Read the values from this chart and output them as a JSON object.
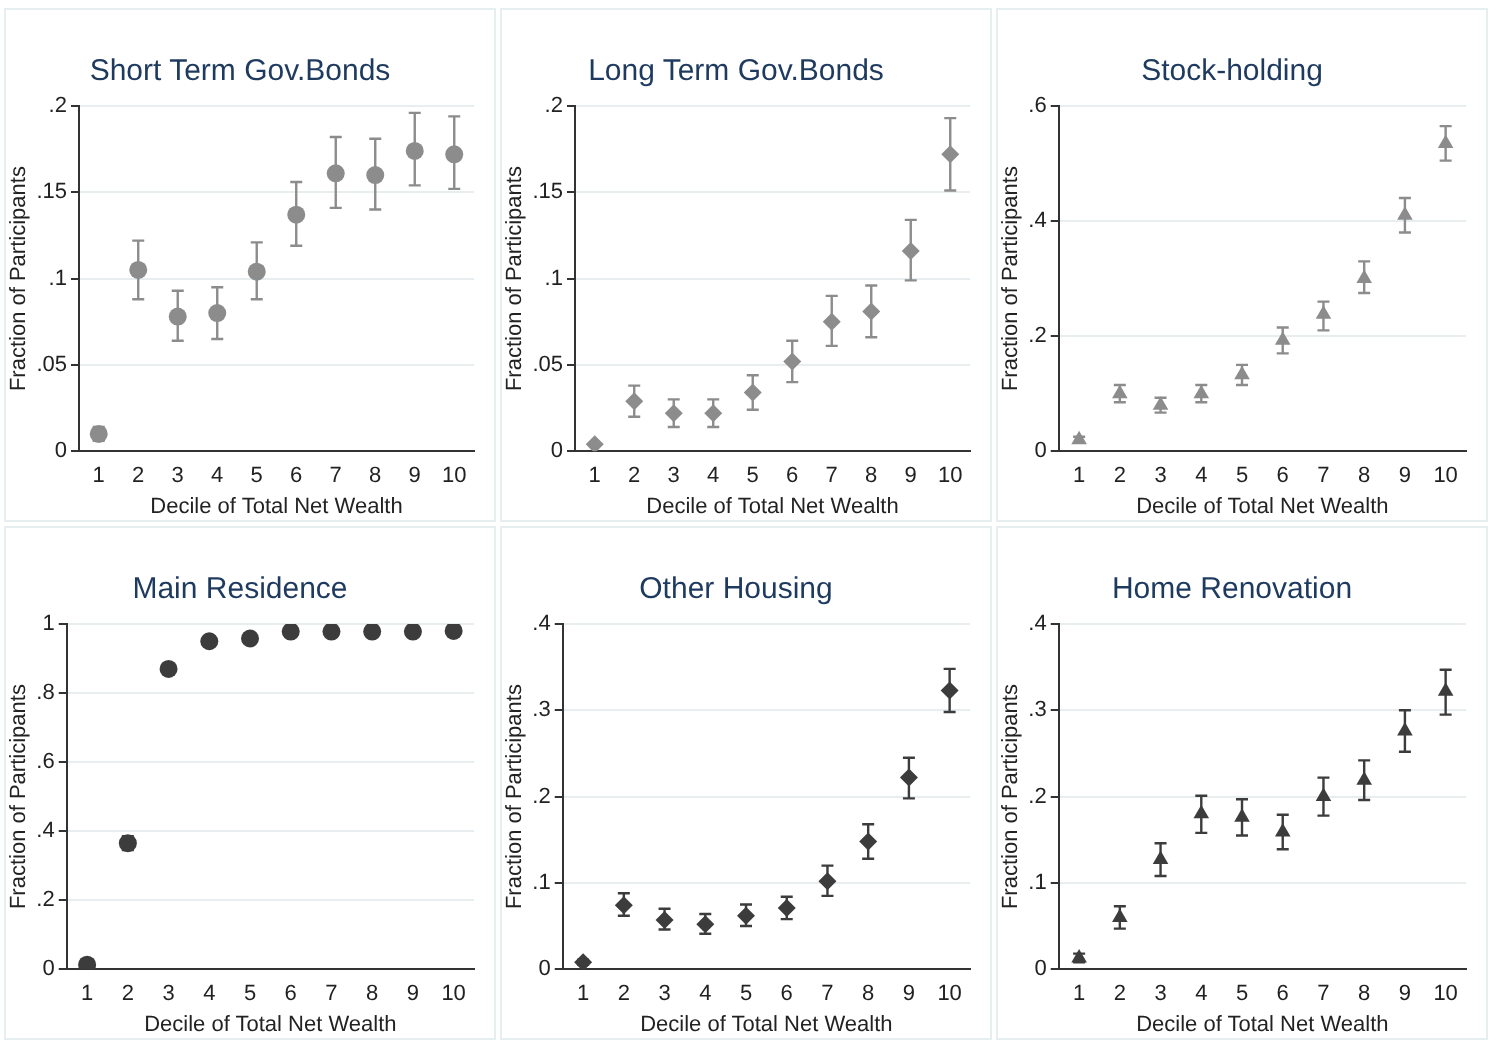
{
  "chart_data": [
    {
      "type": "scatter",
      "title": "Short Term Gov.Bonds",
      "xlabel": "Decile of Total Net Wealth",
      "ylabel": "Fraction of Participants",
      "categories": [
        "1",
        "2",
        "3",
        "4",
        "5",
        "6",
        "7",
        "8",
        "9",
        "10"
      ],
      "color": "#8c8c8c",
      "marker": "circle",
      "grid": "y",
      "values": [
        0.01,
        0.105,
        0.078,
        0.08,
        0.104,
        0.137,
        0.161,
        0.16,
        0.174,
        0.172
      ],
      "errors": [
        [
          0.006,
          0.014
        ],
        [
          0.088,
          0.122
        ],
        [
          0.064,
          0.093
        ],
        [
          0.065,
          0.095
        ],
        [
          0.088,
          0.121
        ],
        [
          0.119,
          0.156
        ],
        [
          0.141,
          0.182
        ],
        [
          0.14,
          0.181
        ],
        [
          0.154,
          0.196
        ],
        [
          0.152,
          0.194
        ]
      ],
      "ylim": [
        0,
        0.2
      ],
      "yticks": [
        {
          "value": 0,
          "label": "0"
        },
        {
          "value": 0.05,
          "label": ".05"
        },
        {
          "value": 0.1,
          "label": ".1"
        },
        {
          "value": 0.15,
          "label": ".15"
        },
        {
          "value": 0.2,
          "label": ".2"
        }
      ]
    },
    {
      "type": "scatter",
      "title": "Long Term Gov.Bonds",
      "xlabel": "Decile of Total Net Wealth",
      "ylabel": "Fraction of Participants",
      "categories": [
        "1",
        "2",
        "3",
        "4",
        "5",
        "6",
        "7",
        "8",
        "9",
        "10"
      ],
      "color": "#8c8c8c",
      "marker": "diamond",
      "grid": "y",
      "values": [
        0.004,
        0.029,
        0.022,
        0.022,
        0.034,
        0.052,
        0.075,
        0.081,
        0.116,
        0.172
      ],
      "errors": [
        null,
        [
          0.02,
          0.038
        ],
        [
          0.014,
          0.03
        ],
        [
          0.014,
          0.03
        ],
        [
          0.024,
          0.044
        ],
        [
          0.04,
          0.064
        ],
        [
          0.061,
          0.09
        ],
        [
          0.066,
          0.096
        ],
        [
          0.099,
          0.134
        ],
        [
          0.151,
          0.193
        ]
      ],
      "ylim": [
        0,
        0.2
      ],
      "yticks": [
        {
          "value": 0,
          "label": "0"
        },
        {
          "value": 0.05,
          "label": ".05"
        },
        {
          "value": 0.1,
          "label": ".1"
        },
        {
          "value": 0.15,
          "label": ".15"
        },
        {
          "value": 0.2,
          "label": ".2"
        }
      ]
    },
    {
      "type": "scatter",
      "title": "Stock-holding",
      "xlabel": "Decile of Total Net Wealth",
      "ylabel": "Fraction of Participants",
      "categories": [
        "1",
        "2",
        "3",
        "4",
        "5",
        "6",
        "7",
        "8",
        "9",
        "10"
      ],
      "color": "#8c8c8c",
      "marker": "triangle",
      "grid": "y",
      "values": [
        0.02,
        0.1,
        0.08,
        0.1,
        0.133,
        0.193,
        0.238,
        0.3,
        0.41,
        0.535
      ],
      "errors": [
        [
          0.015,
          0.025
        ],
        [
          0.085,
          0.115
        ],
        [
          0.067,
          0.093
        ],
        [
          0.085,
          0.115
        ],
        [
          0.115,
          0.15
        ],
        [
          0.17,
          0.215
        ],
        [
          0.21,
          0.26
        ],
        [
          0.275,
          0.33
        ],
        [
          0.38,
          0.44
        ],
        [
          0.505,
          0.565
        ]
      ],
      "ylim": [
        0,
        0.6
      ],
      "yticks": [
        {
          "value": 0,
          "label": "0"
        },
        {
          "value": 0.2,
          "label": ".2"
        },
        {
          "value": 0.4,
          "label": ".4"
        },
        {
          "value": 0.6,
          "label": ".6"
        }
      ]
    },
    {
      "type": "scatter",
      "title": "Main Residence",
      "xlabel": "Decile of Total Net Wealth",
      "ylabel": "Fraction of Participants",
      "categories": [
        "1",
        "2",
        "3",
        "4",
        "5",
        "6",
        "7",
        "8",
        "9",
        "10"
      ],
      "color": "#3c3c3c",
      "marker": "circle",
      "grid": "y",
      "values": [
        0.013,
        0.365,
        0.87,
        0.95,
        0.958,
        0.978,
        0.978,
        0.978,
        0.978,
        0.98
      ],
      "errors": [
        null,
        [
          0.345,
          0.385
        ],
        null,
        null,
        null,
        null,
        null,
        null,
        null,
        null
      ],
      "ylim": [
        0,
        1
      ],
      "yticks": [
        {
          "value": 0,
          "label": "0"
        },
        {
          "value": 0.2,
          "label": ".2"
        },
        {
          "value": 0.4,
          "label": ".4"
        },
        {
          "value": 0.6,
          "label": ".6"
        },
        {
          "value": 0.8,
          "label": ".8"
        },
        1
      ]
    },
    {
      "type": "scatter",
      "title": "Other Housing",
      "xlabel": "Decile of Total Net Wealth",
      "ylabel": "Fraction of Participants",
      "categories": [
        "1",
        "2",
        "3",
        "4",
        "5",
        "6",
        "7",
        "8",
        "9",
        "10"
      ],
      "color": "#3c3c3c",
      "marker": "diamond",
      "grid": "y",
      "values": [
        0.008,
        0.074,
        0.057,
        0.052,
        0.062,
        0.071,
        0.102,
        0.148,
        0.222,
        0.323
      ],
      "errors": [
        [
          0.005,
          0.011
        ],
        [
          0.062,
          0.088
        ],
        [
          0.046,
          0.07
        ],
        [
          0.041,
          0.064
        ],
        [
          0.05,
          0.075
        ],
        [
          0.058,
          0.084
        ],
        [
          0.085,
          0.12
        ],
        [
          0.128,
          0.168
        ],
        [
          0.198,
          0.245
        ],
        [
          0.298,
          0.348
        ]
      ],
      "ylim": [
        0,
        0.4
      ],
      "yticks": [
        {
          "value": 0,
          "label": "0"
        },
        {
          "value": 0.1,
          "label": ".1"
        },
        {
          "value": 0.2,
          "label": ".2"
        },
        {
          "value": 0.3,
          "label": ".3"
        },
        {
          "value": 0.4,
          "label": ".4"
        }
      ]
    },
    {
      "type": "scatter",
      "title": "Home Renovation",
      "xlabel": "Decile of Total Net Wealth",
      "ylabel": "Fraction of Participants",
      "categories": [
        "1",
        "2",
        "3",
        "4",
        "5",
        "6",
        "7",
        "8",
        "9",
        "10"
      ],
      "color": "#3c3c3c",
      "marker": "triangle",
      "grid": "y",
      "values": [
        0.013,
        0.06,
        0.127,
        0.18,
        0.176,
        0.159,
        0.2,
        0.219,
        0.276,
        0.322
      ],
      "errors": [
        [
          0.008,
          0.018
        ],
        [
          0.047,
          0.073
        ],
        [
          0.108,
          0.146
        ],
        [
          0.158,
          0.201
        ],
        [
          0.155,
          0.197
        ],
        [
          0.139,
          0.179
        ],
        [
          0.178,
          0.222
        ],
        [
          0.196,
          0.242
        ],
        [
          0.252,
          0.3
        ],
        [
          0.295,
          0.347
        ]
      ],
      "ylim": [
        0,
        0.4
      ],
      "yticks": [
        {
          "value": 0,
          "label": "0"
        },
        {
          "value": 0.1,
          "label": ".1"
        },
        {
          "value": 0.2,
          "label": ".2"
        },
        {
          "value": 0.3,
          "label": ".3"
        },
        {
          "value": 0.4,
          "label": ".4"
        }
      ]
    }
  ]
}
